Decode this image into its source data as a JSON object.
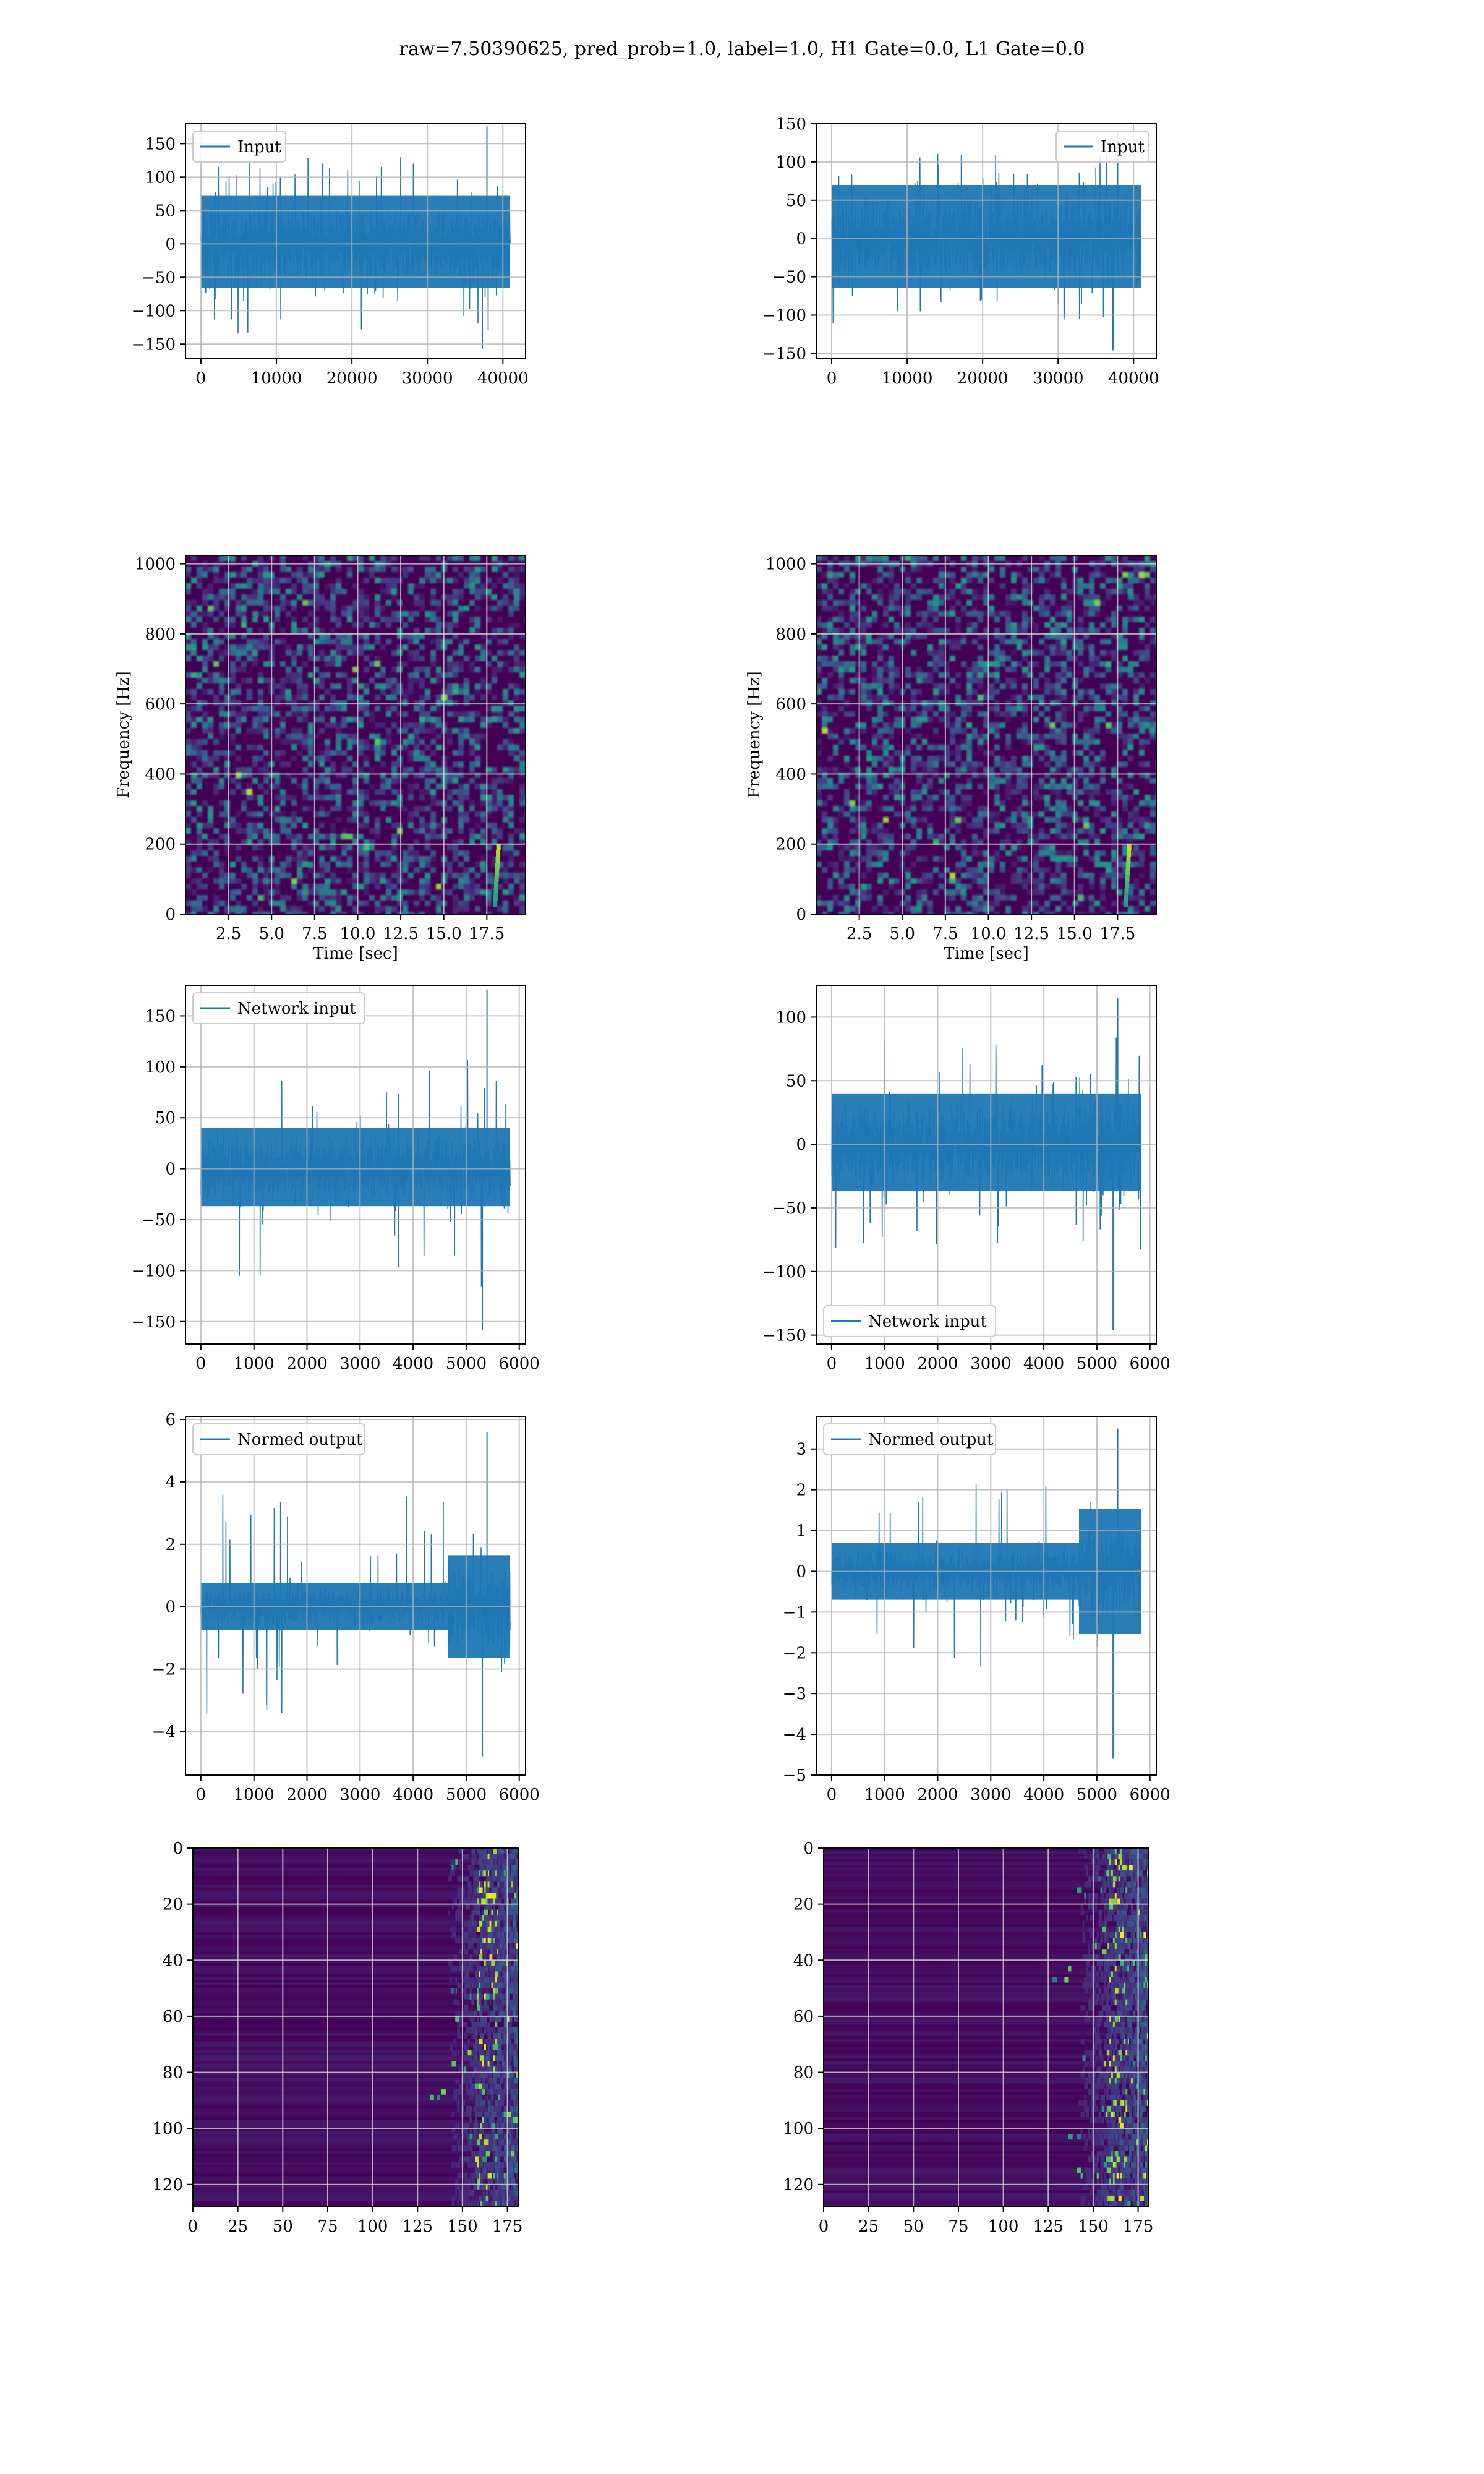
{
  "figure": {
    "suptitle": "raw=7.50390625, pred_prob=1.0, label=1.0, H1 Gate=0.0, L1 Gate=0.0",
    "colors": {
      "line": "#1f77b4",
      "grid": "#b0b0b0",
      "heat_low": "#440154",
      "heat_high": "#fde725"
    }
  },
  "chart_data": [
    {
      "id": "r1c1",
      "type": "line",
      "legend": "Input",
      "legend_loc": "upper left",
      "xlim": [
        -2048,
        43008
      ],
      "ylim": [
        -172,
        180
      ],
      "xticks": [
        0,
        10000,
        20000,
        30000,
        40000
      ],
      "xtick_labels": [
        "0",
        "10000",
        "20000",
        "30000",
        "40000"
      ],
      "yticks": [
        -150,
        -100,
        -50,
        0,
        50,
        100,
        150
      ],
      "ytick_labels": [
        "−150",
        "−100",
        "−50",
        "0",
        "50",
        "100",
        "150"
      ],
      "n": 40960,
      "envelope": {
        "core": 72,
        "max": 176,
        "min": -158
      }
    },
    {
      "id": "r1c2",
      "type": "line",
      "legend": "Input",
      "legend_loc": "upper right",
      "xlim": [
        -2048,
        43008
      ],
      "ylim": [
        -157,
        150
      ],
      "xticks": [
        0,
        10000,
        20000,
        30000,
        40000
      ],
      "xtick_labels": [
        "0",
        "10000",
        "20000",
        "30000",
        "40000"
      ],
      "yticks": [
        -150,
        -100,
        -50,
        0,
        50,
        100,
        150
      ],
      "ytick_labels": [
        "−150",
        "−100",
        "−50",
        "0",
        "50",
        "100",
        "150"
      ],
      "n": 40960,
      "envelope": {
        "core": 70,
        "max": 138,
        "min": -146
      }
    },
    {
      "id": "r2c1",
      "type": "heatmap",
      "xlabel": "Time [sec]",
      "ylabel": "Frequency [Hz]",
      "xlim": [
        0,
        19.75
      ],
      "ylim": [
        0,
        1024
      ],
      "xticks": [
        2.5,
        5.0,
        7.5,
        10.0,
        12.5,
        15.0,
        17.5
      ],
      "xtick_labels": [
        "2.5",
        "5.0",
        "7.5",
        "10.0",
        "12.5",
        "15.0",
        "17.5"
      ],
      "yticks": [
        0,
        200,
        400,
        600,
        800,
        1000
      ],
      "ytick_labels": [
        "0",
        "200",
        "400",
        "600",
        "800",
        "1000"
      ],
      "chirp_time": 18.0
    },
    {
      "id": "r2c2",
      "type": "heatmap",
      "xlabel": "Time [sec]",
      "ylabel": "Frequency [Hz]",
      "xlim": [
        0,
        19.75
      ],
      "ylim": [
        0,
        1024
      ],
      "xticks": [
        2.5,
        5.0,
        7.5,
        10.0,
        12.5,
        15.0,
        17.5
      ],
      "xtick_labels": [
        "2.5",
        "5.0",
        "7.5",
        "10.0",
        "12.5",
        "15.0",
        "17.5"
      ],
      "yticks": [
        0,
        200,
        400,
        600,
        800,
        1000
      ],
      "ytick_labels": [
        "0",
        "200",
        "400",
        "600",
        "800",
        "1000"
      ],
      "chirp_time": 18.0
    },
    {
      "id": "r3c1",
      "type": "line",
      "legend": "Network input",
      "legend_loc": "upper left",
      "xlim": [
        -290,
        6120
      ],
      "ylim": [
        -172,
        180
      ],
      "xticks": [
        0,
        1000,
        2000,
        3000,
        4000,
        5000,
        6000
      ],
      "xtick_labels": [
        "0",
        "1000",
        "2000",
        "3000",
        "4000",
        "5000",
        "6000"
      ],
      "yticks": [
        -150,
        -100,
        -50,
        0,
        50,
        100,
        150
      ],
      "ytick_labels": [
        "−150",
        "−100",
        "−50",
        "0",
        "50",
        "100",
        "150"
      ],
      "n": 5830,
      "envelope": {
        "core": 40,
        "max": 176,
        "min": -158
      }
    },
    {
      "id": "r3c2",
      "type": "line",
      "legend": "Network input",
      "legend_loc": "lower left",
      "xlim": [
        -290,
        6120
      ],
      "ylim": [
        -157,
        125
      ],
      "xticks": [
        0,
        1000,
        2000,
        3000,
        4000,
        5000,
        6000
      ],
      "xtick_labels": [
        "0",
        "1000",
        "2000",
        "3000",
        "4000",
        "5000",
        "6000"
      ],
      "yticks": [
        -150,
        -100,
        -50,
        0,
        50,
        100
      ],
      "ytick_labels": [
        "−150",
        "−100",
        "−50",
        "0",
        "50",
        "100"
      ],
      "n": 5830,
      "envelope": {
        "core": 40,
        "max": 115,
        "min": -146
      }
    },
    {
      "id": "r4c1",
      "type": "line",
      "legend": "Normed output",
      "legend_loc": "upper left",
      "xlim": [
        -290,
        6120
      ],
      "ylim": [
        -5.4,
        6.1
      ],
      "xticks": [
        0,
        1000,
        2000,
        3000,
        4000,
        5000,
        6000
      ],
      "xtick_labels": [
        "0",
        "1000",
        "2000",
        "3000",
        "4000",
        "5000",
        "6000"
      ],
      "yticks": [
        -4,
        -2,
        0,
        2,
        4,
        6
      ],
      "ytick_labels": [
        "−4",
        "−2",
        "0",
        "2",
        "4",
        "6"
      ],
      "n": 5830,
      "envelope": {
        "core": 0.75,
        "max": 5.6,
        "min": -4.8
      }
    },
    {
      "id": "r4c2",
      "type": "line",
      "legend": "Normed output",
      "legend_loc": "upper left",
      "xlim": [
        -290,
        6120
      ],
      "ylim": [
        -5.0,
        3.8
      ],
      "xticks": [
        0,
        1000,
        2000,
        3000,
        4000,
        5000,
        6000
      ],
      "xtick_labels": [
        "0",
        "1000",
        "2000",
        "3000",
        "4000",
        "5000",
        "6000"
      ],
      "yticks": [
        -5,
        -4,
        -3,
        -2,
        -1,
        0,
        1,
        2,
        3
      ],
      "ytick_labels": [
        "−5",
        "−4",
        "−3",
        "−2",
        "−1",
        "0",
        "1",
        "2",
        "3"
      ],
      "n": 5830,
      "envelope": {
        "core": 0.7,
        "max": 3.5,
        "min": -4.6
      }
    },
    {
      "id": "r5c1",
      "type": "heatmap",
      "image": "scalogram",
      "xlim": [
        0,
        181
      ],
      "ylim": [
        128,
        0
      ],
      "xticks": [
        0,
        25,
        50,
        75,
        100,
        125,
        150,
        175
      ],
      "xtick_labels": [
        "0",
        "25",
        "50",
        "75",
        "100",
        "125",
        "150",
        "175"
      ],
      "yticks": [
        0,
        20,
        40,
        60,
        80,
        100,
        120
      ],
      "ytick_labels": [
        "0",
        "20",
        "40",
        "60",
        "80",
        "100",
        "120"
      ]
    },
    {
      "id": "r5c2",
      "type": "heatmap",
      "image": "scalogram",
      "xlim": [
        0,
        181
      ],
      "ylim": [
        128,
        0
      ],
      "xticks": [
        0,
        25,
        50,
        75,
        100,
        125,
        150,
        175
      ],
      "xtick_labels": [
        "0",
        "25",
        "50",
        "75",
        "100",
        "125",
        "150",
        "175"
      ],
      "yticks": [
        0,
        20,
        40,
        60,
        80,
        100,
        120
      ],
      "ytick_labels": [
        "0",
        "20",
        "40",
        "60",
        "80",
        "100",
        "120"
      ]
    }
  ]
}
